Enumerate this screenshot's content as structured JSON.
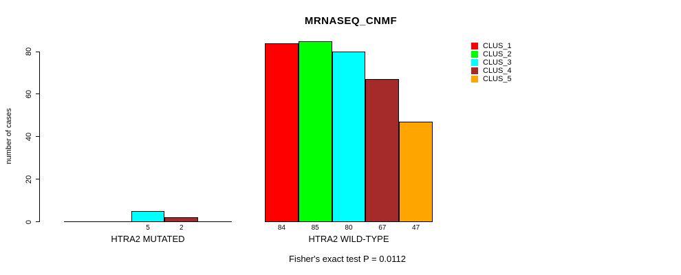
{
  "chart_data": {
    "type": "bar",
    "grouped": true,
    "title": "MRNASEQ_CNMF",
    "ylabel": "number of cases",
    "annotation": "Fisher's exact test P = 0.0112",
    "categories": [
      "HTRA2 MUTATED",
      "HTRA2 WILD-TYPE"
    ],
    "series": [
      {
        "name": "CLUS_1",
        "color": "#FF0000",
        "values": [
          0,
          84
        ]
      },
      {
        "name": "CLUS_2",
        "color": "#00FF00",
        "values": [
          0,
          85
        ]
      },
      {
        "name": "CLUS_3",
        "color": "#00FFFF",
        "values": [
          5,
          80
        ]
      },
      {
        "name": "CLUS_4",
        "color": "#A52A2A",
        "values": [
          2,
          67
        ]
      },
      {
        "name": "CLUS_5",
        "color": "#FFA500",
        "values": [
          0,
          47
        ]
      }
    ],
    "bar_labels": [
      [
        "",
        "",
        "5",
        "2",
        ""
      ],
      [
        "84",
        "85",
        "80",
        "67",
        "47"
      ]
    ],
    "yticks": [
      "0",
      "20",
      "40",
      "60",
      "80"
    ],
    "ylim": [
      0,
      80
    ],
    "grid": false,
    "legend_position": "top-right",
    "axis_color": "#000000",
    "background_color": "#FFFFFF"
  }
}
